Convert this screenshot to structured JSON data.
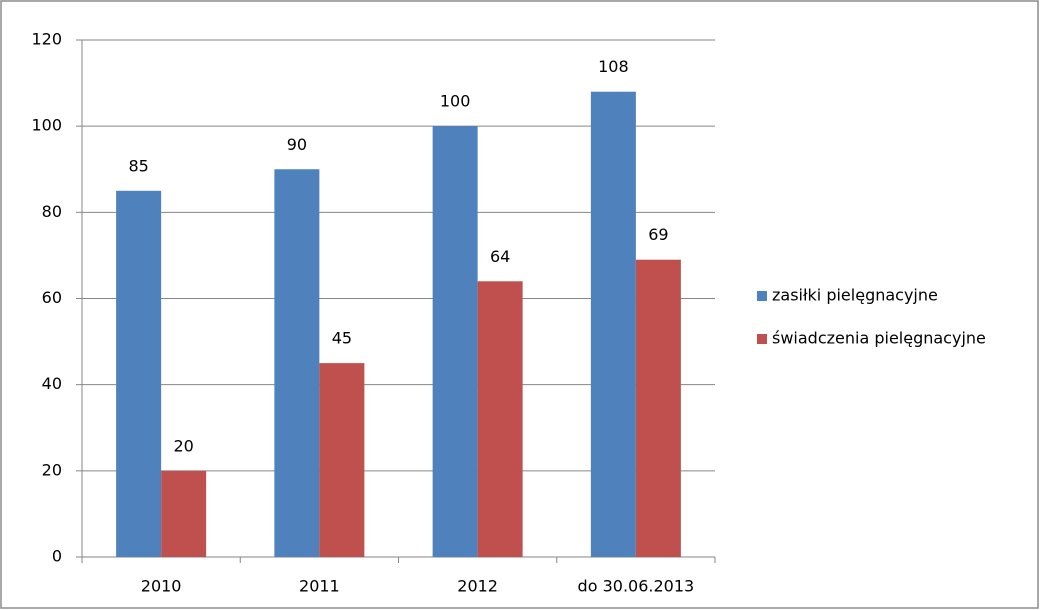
{
  "chart_data": {
    "type": "bar",
    "categories": [
      "2010",
      "2011",
      "2012",
      "do 30.06.2013"
    ],
    "series": [
      {
        "name": "zasiłki pielęgnacyjne",
        "color": "#4f81bd",
        "values": [
          85,
          90,
          100,
          108
        ]
      },
      {
        "name": "świadczenia pielęgnacyjne",
        "color": "#c0504d",
        "values": [
          20,
          45,
          64,
          69
        ]
      }
    ],
    "ylim": [
      0,
      120
    ],
    "yticks": [
      0,
      20,
      40,
      60,
      80,
      100,
      120
    ],
    "grid": true,
    "legend": "right"
  }
}
